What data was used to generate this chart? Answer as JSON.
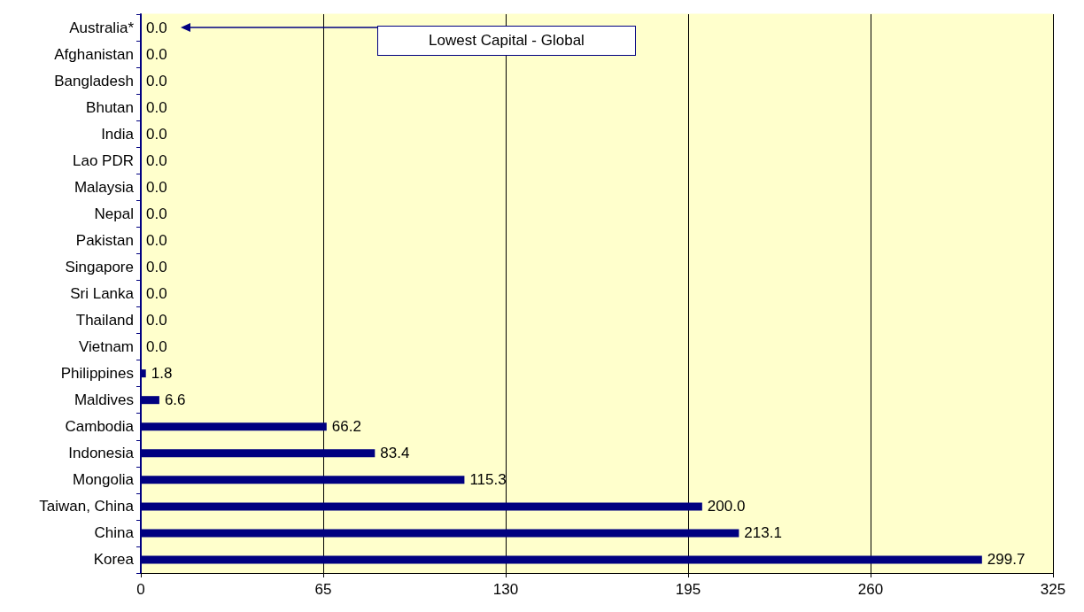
{
  "chart_data": {
    "type": "bar",
    "orientation": "horizontal",
    "categories": [
      "Australia*",
      "Afghanistan",
      "Bangladesh",
      "Bhutan",
      "India",
      "Lao PDR",
      "Malaysia",
      "Nepal",
      "Pakistan",
      "Singapore",
      "Sri Lanka",
      "Thailand",
      "Vietnam",
      "Philippines",
      "Maldives",
      "Cambodia",
      "Indonesia",
      "Mongolia",
      "Taiwan, China",
      "China",
      "Korea"
    ],
    "values": [
      0,
      0,
      0,
      0,
      0,
      0,
      0,
      0,
      0,
      0,
      0,
      0,
      0,
      1.8,
      6.6,
      66.2,
      83.4,
      115.3,
      200.0,
      213.1,
      299.7
    ],
    "value_labels": [
      "0.0",
      "0.0",
      "0.0",
      "0.0",
      "0.0",
      "0.0",
      "0.0",
      "0.0",
      "0.0",
      "0.0",
      "0.0",
      "0.0",
      "0.0",
      "1.8",
      "6.6",
      "66.2",
      "83.4",
      "115.3",
      "200.0",
      "213.1",
      "299.7"
    ],
    "color": "#000080",
    "xlim": [
      0,
      325
    ],
    "xticks": [
      0,
      65,
      130,
      195,
      260,
      325
    ],
    "grid": "x",
    "annotations": [
      "Lowest Capital - Global"
    ]
  }
}
